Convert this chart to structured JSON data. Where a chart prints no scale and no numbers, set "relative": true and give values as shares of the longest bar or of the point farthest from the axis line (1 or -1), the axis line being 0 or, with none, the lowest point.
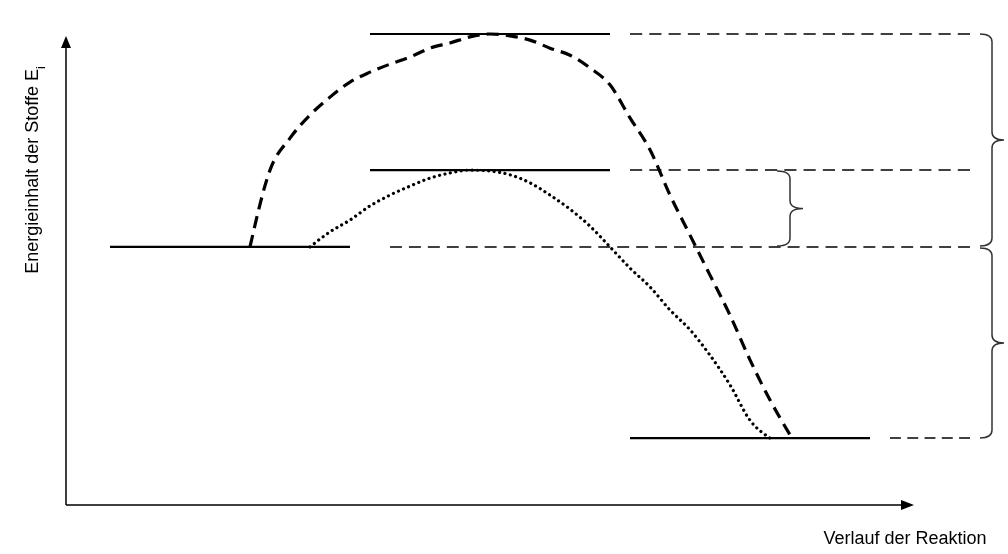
{
  "chart_data": {
    "type": "line",
    "relative": true,
    "xlabel": "Verlauf der Reaktion",
    "ylabel": "Energieinhalt der Stoffe E$_{i}$",
    "categories": [
      null,
      null,
      null,
      null,
      null,
      null,
      null,
      null,
      null,
      null,
      null,
      null,
      null,
      null,
      null,
      null,
      null,
      null,
      null,
      null,
      null,
      null,
      null,
      null,
      null,
      null,
      null,
      null,
      null,
      null,
      null,
      null,
      null,
      null,
      null,
      null,
      null,
      null,
      null,
      null,
      null,
      null,
      null,
      null,
      null,
      null,
      null
    ],
    "series": [
      {
        "color": "#000000",
        "line_style": "solid",
        "values": [
          null,
          null,
          null,
          0.548,
          0.548,
          0.548,
          0.548,
          0.548,
          0.548,
          0.548,
          0.548,
          0.548,
          0.548,
          0.548,
          0.548,
          0.548,
          null,
          null,
          null,
          null,
          null,
          null,
          null,
          null,
          null,
          null,
          null,
          null,
          null,
          null,
          null,
          null,
          null,
          null,
          null,
          null,
          null,
          null,
          null,
          null,
          null,
          null,
          null,
          null,
          null,
          null,
          null
        ]
      },
      {
        "color": "#000000",
        "line_style": "solid",
        "values": [
          null,
          null,
          null,
          null,
          null,
          null,
          null,
          null,
          null,
          null,
          null,
          null,
          null,
          null,
          null,
          null,
          1,
          1,
          1,
          1,
          1,
          1,
          1,
          1,
          1,
          1,
          1,
          1,
          1,
          null,
          null,
          null,
          null,
          null,
          null,
          null,
          null,
          null,
          null,
          null,
          null,
          null,
          null,
          null,
          null,
          null,
          null
        ]
      },
      {
        "color": "#000000",
        "line_style": "solid",
        "values": [
          null,
          null,
          null,
          null,
          null,
          null,
          null,
          null,
          null,
          null,
          null,
          null,
          null,
          null,
          null,
          null,
          0.711,
          0.711,
          0.711,
          0.711,
          0.711,
          0.711,
          0.711,
          0.711,
          0.711,
          0.711,
          0.711,
          0.711,
          0.711,
          null,
          null,
          null,
          null,
          null,
          null,
          null,
          null,
          null,
          null,
          null,
          null,
          null,
          null,
          null,
          null,
          null,
          null
        ]
      },
      {
        "color": "#000000",
        "line_style": "solid",
        "values": [
          null,
          null,
          null,
          null,
          null,
          null,
          null,
          null,
          null,
          null,
          null,
          null,
          null,
          null,
          null,
          null,
          null,
          null,
          null,
          null,
          null,
          null,
          null,
          null,
          null,
          null,
          null,
          null,
          null,
          0.142,
          0.142,
          0.142,
          0.142,
          0.142,
          0.142,
          0.142,
          0.142,
          0.142,
          0.142,
          0.142,
          0.142,
          0.142,
          null,
          null,
          null,
          null,
          null
        ]
      },
      {
        "color": "#404040",
        "line_style": "dashed",
        "values": [
          null,
          null,
          null,
          null,
          null,
          null,
          null,
          null,
          null,
          null,
          null,
          null,
          null,
          null,
          null,
          null,
          null,
          null,
          null,
          null,
          null,
          null,
          null,
          null,
          null,
          null,
          null,
          null,
          null,
          1,
          1,
          1,
          1,
          1,
          1,
          1,
          1,
          1,
          1,
          1,
          1,
          1,
          1,
          1,
          1,
          1,
          1
        ]
      },
      {
        "color": "#404040",
        "line_style": "dashed",
        "values": [
          null,
          null,
          null,
          null,
          null,
          null,
          null,
          null,
          null,
          null,
          null,
          null,
          null,
          null,
          null,
          null,
          null,
          null,
          null,
          null,
          null,
          null,
          null,
          null,
          null,
          null,
          null,
          null,
          null,
          0.711,
          0.711,
          0.711,
          0.711,
          0.711,
          0.711,
          0.711,
          0.711,
          0.711,
          0.711,
          0.711,
          0.711,
          0.711,
          0.711,
          0.711,
          0.711,
          0.711,
          0.711
        ]
      },
      {
        "color": "#404040",
        "line_style": "dashed",
        "values": [
          null,
          null,
          null,
          null,
          null,
          null,
          null,
          null,
          null,
          null,
          null,
          null,
          null,
          null,
          null,
          null,
          null,
          0.548,
          0.548,
          0.548,
          0.548,
          0.548,
          0.548,
          0.548,
          0.548,
          0.548,
          0.548,
          0.548,
          0.548,
          0.548,
          0.548,
          0.548,
          0.548,
          0.548,
          0.548,
          0.548,
          0.548,
          0.548,
          0.548,
          0.548,
          0.548,
          0.548,
          0.548,
          0.548,
          0.548,
          0.548,
          0.548
        ]
      },
      {
        "color": "#404040",
        "line_style": "dashed",
        "values": [
          null,
          null,
          null,
          null,
          null,
          null,
          null,
          null,
          null,
          null,
          null,
          null,
          null,
          null,
          null,
          null,
          null,
          null,
          null,
          null,
          null,
          null,
          null,
          null,
          null,
          null,
          null,
          null,
          null,
          null,
          null,
          null,
          null,
          null,
          null,
          null,
          null,
          null,
          null,
          null,
          null,
          null,
          0.142,
          0.142,
          0.142,
          0.142,
          0.142
        ]
      },
      {
        "color": "#000000",
        "line_style": "dashed",
        "values": [
          null,
          null,
          null,
          null,
          null,
          null,
          null,
          null,
          null,
          null,
          0.548,
          0.711,
          0.779,
          0.828,
          0.866,
          0.898,
          0.919,
          0.936,
          0.951,
          0.97,
          0.981,
          0.994,
          1,
          0.996,
          0.987,
          0.97,
          0.955,
          0.928,
          0.892,
          0.822,
          0.754,
          0.658,
          0.573,
          0.488,
          0.403,
          0.308,
          0.223,
          0.149,
          null,
          null,
          null,
          null,
          null,
          null,
          null,
          null,
          null
        ]
      },
      {
        "color": "#000000",
        "line_style": "dotted",
        "values": [
          null,
          null,
          null,
          null,
          null,
          null,
          null,
          null,
          null,
          null,
          null,
          null,
          null,
          0.548,
          0.58,
          0.605,
          0.635,
          0.658,
          0.677,
          0.694,
          0.705,
          0.711,
          0.709,
          0.701,
          0.684,
          0.658,
          0.628,
          0.592,
          0.548,
          0.503,
          0.463,
          0.414,
          0.372,
          0.318,
          0.255,
          0.18,
          0.142,
          null,
          null,
          null,
          null,
          null,
          null,
          null,
          null,
          null,
          null
        ]
      }
    ]
  }
}
